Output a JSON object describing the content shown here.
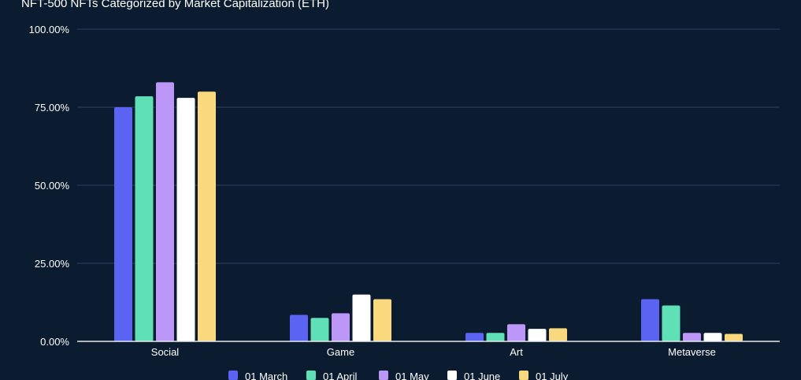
{
  "chart_data": {
    "type": "bar",
    "title": "NFT-500 NFTs Categorized by Market Capitalization (ETH)",
    "xlabel": "",
    "ylabel": "",
    "ylim": [
      0,
      100
    ],
    "y_ticks": [
      "0.00%",
      "25.00%",
      "50.00%",
      "75.00%",
      "100.00%"
    ],
    "y_tick_values": [
      0,
      25,
      50,
      75,
      100
    ],
    "grid": true,
    "legend_position": "bottom",
    "categories": [
      "Social",
      "Game",
      "Art",
      "Metaverse"
    ],
    "series": [
      {
        "name": "01 March",
        "color": "#5b63f3",
        "values": [
          75.0,
          8.5,
          2.7,
          13.5
        ]
      },
      {
        "name": "01 April",
        "color": "#5fe0b7",
        "values": [
          78.5,
          7.5,
          2.7,
          11.5
        ]
      },
      {
        "name": "01 May",
        "color": "#bd97f7",
        "values": [
          83.0,
          9.0,
          5.5,
          2.7
        ]
      },
      {
        "name": "01 June",
        "color": "#ffffff",
        "values": [
          78.0,
          15.0,
          4.0,
          2.7
        ]
      },
      {
        "name": "01 July",
        "color": "#fad97e",
        "values": [
          80.0,
          13.5,
          4.2,
          2.4
        ]
      }
    ]
  }
}
